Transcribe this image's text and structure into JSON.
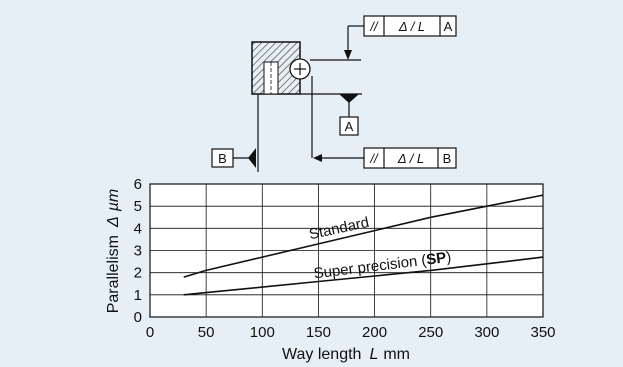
{
  "colors": {
    "panel_bg": "#e6eff5",
    "plot_bg": "#ffffff",
    "ink": "#111111",
    "hatch": "#333333"
  },
  "diagram": {
    "upper_frame": {
      "symbol": "//",
      "tolerance": "Δ / L",
      "datum": "A"
    },
    "datum_a_label": "A",
    "lower_frame": {
      "symbol": "//",
      "tolerance": "Δ / L",
      "datum": "B"
    },
    "datum_b_label": "B"
  },
  "chart_data": {
    "type": "line",
    "xlabel": "Way length",
    "xlabel_symbol": "L",
    "xlabel_unit": "mm",
    "ylabel": "Parallelism",
    "ylabel_symbol": "Δ",
    "ylabel_unit": "µm",
    "xlim": [
      0,
      350
    ],
    "ylim": [
      0,
      6
    ],
    "xticks": [
      0,
      50,
      100,
      150,
      200,
      250,
      300,
      350
    ],
    "yticks": [
      0,
      1,
      2,
      3,
      4,
      5,
      6
    ],
    "grid": true,
    "series": [
      {
        "name": "Standard",
        "x": [
          30,
          50,
          100,
          150,
          200,
          250,
          300,
          350
        ],
        "y": [
          1.8,
          2.1,
          2.7,
          3.3,
          3.9,
          4.5,
          5.0,
          5.5
        ]
      },
      {
        "name": "Super precision (SP)",
        "name_parts": [
          "Super precision (",
          "SP",
          ")"
        ],
        "x": [
          30,
          50,
          100,
          150,
          200,
          250,
          300,
          350
        ],
        "y": [
          1.0,
          1.1,
          1.35,
          1.6,
          1.85,
          2.1,
          2.4,
          2.7
        ]
      }
    ]
  }
}
